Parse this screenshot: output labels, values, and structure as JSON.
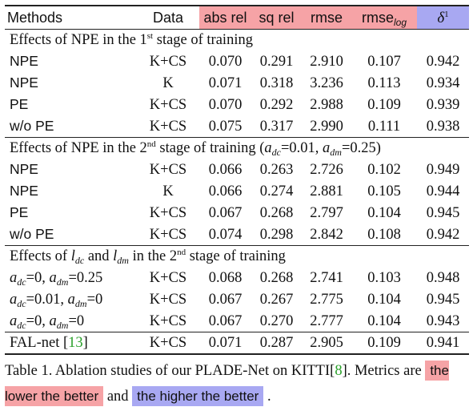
{
  "table": {
    "headers": {
      "methods": "Methods",
      "data": "Data",
      "abs_rel": "abs rel",
      "sq_rel": "sq rel",
      "rmse": "rmse",
      "rmse_log_main": "rmse",
      "rmse_log_sub": "log",
      "delta_main": "δ",
      "delta_sup": "1"
    },
    "colors": {
      "lower_better": "#f6a3a6",
      "higher_better": "#a8a8f2",
      "citation": "#2aa02a"
    },
    "section1": {
      "text_a": "Effects of NPE in the 1",
      "sup": "st",
      "text_b": " stage of training",
      "rows": [
        {
          "method": "NPE",
          "data": "K+CS",
          "abs_rel": "0.070",
          "sq_rel": "0.291",
          "rmse": "2.910",
          "rmse_log": "0.107",
          "delta1": "0.942"
        },
        {
          "method": "NPE",
          "data": "K",
          "abs_rel": "0.071",
          "sq_rel": "0.318",
          "rmse": "3.236",
          "rmse_log": "0.113",
          "delta1": "0.934"
        },
        {
          "method": "PE",
          "data": "K+CS",
          "abs_rel": "0.070",
          "sq_rel": "0.292",
          "rmse": "2.988",
          "rmse_log": "0.109",
          "delta1": "0.939"
        },
        {
          "method": "w/o PE",
          "data": "K+CS",
          "abs_rel": "0.075",
          "sq_rel": "0.317",
          "rmse": "2.990",
          "rmse_log": "0.111",
          "delta1": "0.938"
        }
      ]
    },
    "section2": {
      "text_a": "Effects of NPE in the 2",
      "sup": "nd",
      "text_b": " stage of training (",
      "a_sym": "a",
      "dc_sub": "dc",
      "val_dc": "=0.01, ",
      "dm_sub": "dm",
      "val_dm": "=0.25)",
      "rows": [
        {
          "method": "NPE",
          "data": "K+CS",
          "abs_rel": "0.066",
          "sq_rel": "0.263",
          "rmse": "2.726",
          "rmse_log": "0.102",
          "delta1": "0.949"
        },
        {
          "method": "NPE",
          "data": "K",
          "abs_rel": "0.066",
          "sq_rel": "0.274",
          "rmse": "2.881",
          "rmse_log": "0.105",
          "delta1": "0.944"
        },
        {
          "method": "PE",
          "data": "K+CS",
          "abs_rel": "0.067",
          "sq_rel": "0.268",
          "rmse": "2.797",
          "rmse_log": "0.104",
          "delta1": "0.945"
        },
        {
          "method": "w/o PE",
          "data": "K+CS",
          "abs_rel": "0.074",
          "sq_rel": "0.298",
          "rmse": "2.842",
          "rmse_log": "0.108",
          "delta1": "0.942"
        }
      ]
    },
    "section3": {
      "text_a": "Effects of ",
      "l_sym": "l",
      "dc_sub": "dc",
      "and": " and ",
      "dm_sub": "dm",
      "text_b": " in the 2",
      "sup": "nd",
      "text_c": " stage of training",
      "rows": [
        {
          "a": "a",
          "dc": "dc",
          "v1": "=0, ",
          "dm": "dm",
          "v2": "=0.25",
          "data": "K+CS",
          "abs_rel": "0.068",
          "sq_rel": "0.268",
          "rmse": "2.741",
          "rmse_log": "0.103",
          "delta1": "0.948"
        },
        {
          "a": "a",
          "dc": "dc",
          "v1": "=0.01, ",
          "dm": "dm",
          "v2": "=0",
          "data": "K+CS",
          "abs_rel": "0.067",
          "sq_rel": "0.267",
          "rmse": "2.775",
          "rmse_log": "0.104",
          "delta1": "0.945"
        },
        {
          "a": "a",
          "dc": "dc",
          "v1": "=0, ",
          "dm": "dm",
          "v2": "=0",
          "data": "K+CS",
          "abs_rel": "0.067",
          "sq_rel": "0.270",
          "rmse": "2.777",
          "rmse_log": "0.104",
          "delta1": "0.943"
        }
      ]
    },
    "falnet": {
      "method": "FAL-net [",
      "cite": "13",
      "close": "]",
      "data": "K+CS",
      "abs_rel": "0.071",
      "sq_rel": "0.287",
      "rmse": "2.905",
      "rmse_log": "0.109",
      "delta1": "0.941"
    }
  },
  "caption": {
    "part1": "Table 1. Ablation studies of our PLADE-Net on KITTI[",
    "cite": "8",
    "part2": "]. Metrics are ",
    "lower": "the lower the better",
    "and": " and ",
    "higher": "the higher the better",
    "end": " ."
  }
}
